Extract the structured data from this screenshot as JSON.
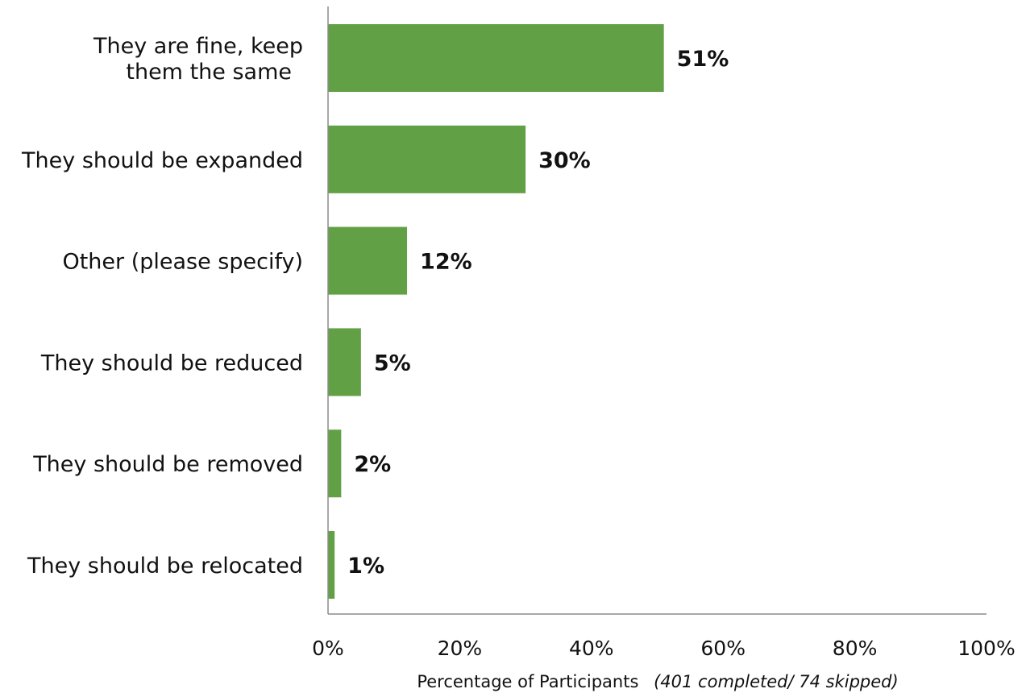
{
  "chart_data": {
    "type": "bar",
    "orientation": "horizontal",
    "categories": [
      [
        "They are fine, keep",
        "them the same"
      ],
      [
        "They should be expanded"
      ],
      [
        "Other (please specify)"
      ],
      [
        "They should be reduced"
      ],
      [
        "They should be removed"
      ],
      [
        "They should be relocated"
      ]
    ],
    "values": [
      51,
      30,
      12,
      5,
      2,
      1
    ],
    "value_labels": [
      "51%",
      "30%",
      "12%",
      "5%",
      "2%",
      "1%"
    ],
    "xlim": [
      0,
      100
    ],
    "xticks": [
      0,
      20,
      40,
      60,
      80,
      100
    ],
    "xtick_labels": [
      "0%",
      "20%",
      "40%",
      "60%",
      "80%",
      "100%"
    ],
    "xlabel": "Percentage of Participants",
    "xlabel_note": "(401 completed/ 74 skipped)",
    "grid": false,
    "bar_color": "#62a046",
    "axis_color": "#8c8c8c"
  }
}
